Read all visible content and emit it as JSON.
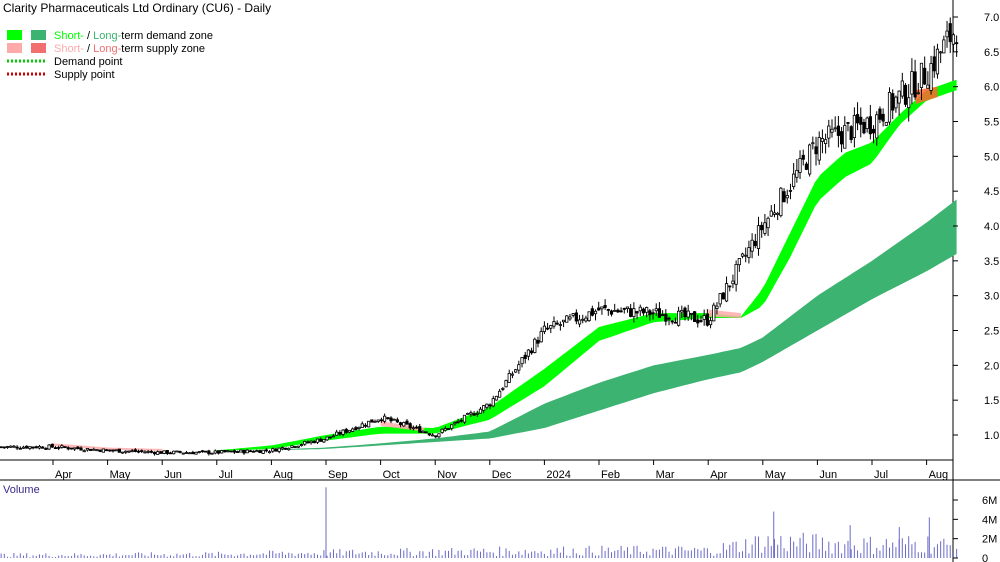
{
  "title": "Clarity Pharmaceuticals Ltd Ordinary (CU6) - Daily",
  "legend": {
    "demand_zone": {
      "short": "Short-",
      "sep": " / ",
      "long": "Long-",
      "rest": "term demand zone",
      "short_color": "#00ff00",
      "long_color": "#3cb371"
    },
    "supply_zone": {
      "short": "Short-",
      "sep": " / ",
      "long": "Long-",
      "rest": "term supply zone",
      "short_color": "#ffaaaa",
      "long_color": "#f07070"
    },
    "demand_point": "Demand point",
    "supply_point": "Supply point",
    "demand_point_color": "#00cc00",
    "supply_point_color": "#cc0000"
  },
  "volume_label": "Volume",
  "colors": {
    "short_demand": "#00ff00",
    "long_demand": "#3cb371",
    "supply": "#ff6633",
    "candle": "#000000",
    "volume": "#6a6ac8",
    "grid": "#cccccc"
  },
  "chart_data": {
    "type": "candlestick",
    "x_ticks": [
      "Apr",
      "May",
      "Jun",
      "Jul",
      "Aug",
      "Sep",
      "Oct",
      "Nov",
      "Dec",
      "2024",
      "Feb",
      "Mar",
      "Apr",
      "May",
      "Jun",
      "Jul",
      "Aug"
    ],
    "y_ticks": [
      "7.0",
      "6.5",
      "6.0",
      "5.5",
      "5.0",
      "4.5",
      "4.0",
      "3.5",
      "3.0",
      "2.5",
      "2.0",
      "1.5",
      "1.0"
    ],
    "ylim": [
      0.4,
      7.2
    ],
    "volume_ticks": [
      "6M",
      "4M",
      "2M",
      "0"
    ],
    "volume_ylim": [
      0,
      7.5
    ],
    "price_anchors": {
      "month_index": [
        0,
        1,
        2,
        3,
        4,
        5,
        6,
        7,
        8,
        9,
        10,
        11,
        12,
        13,
        14,
        15,
        16,
        16.55
      ],
      "close": [
        0.83,
        0.78,
        0.75,
        0.75,
        0.78,
        0.95,
        1.25,
        1.0,
        1.45,
        2.5,
        2.8,
        2.75,
        2.65,
        4.0,
        5.2,
        5.5,
        6.2,
        6.85
      ]
    },
    "short_demand_zone": {
      "month_index": [
        3.0,
        4.0,
        5.0,
        6.0,
        7.0,
        8.0,
        9.0,
        10.0,
        11.0,
        12.0,
        12.6,
        13.0,
        13.5,
        14.0,
        14.5,
        15.0,
        15.5,
        16.0,
        16.55
      ],
      "upper": [
        0.78,
        0.85,
        1.0,
        1.12,
        1.1,
        1.4,
        1.95,
        2.55,
        2.75,
        2.75,
        2.7,
        3.1,
        3.9,
        4.7,
        5.05,
        5.2,
        5.6,
        5.95,
        6.1
      ],
      "lower": [
        0.77,
        0.8,
        0.92,
        1.02,
        1.02,
        1.22,
        1.7,
        2.35,
        2.62,
        2.68,
        2.68,
        2.85,
        3.55,
        4.35,
        4.7,
        4.9,
        5.45,
        5.8,
        5.95
      ]
    },
    "long_demand_zone": {
      "month_index": [
        4.0,
        5.0,
        6.0,
        7.0,
        8.0,
        9.0,
        10.0,
        11.0,
        12.0,
        12.6,
        13.0,
        14.0,
        15.0,
        16.0,
        16.55
      ],
      "upper": [
        0.79,
        0.82,
        0.88,
        0.95,
        1.05,
        1.45,
        1.75,
        2.0,
        2.15,
        2.25,
        2.4,
        3.0,
        3.5,
        4.05,
        4.38
      ],
      "lower": [
        0.78,
        0.8,
        0.85,
        0.9,
        0.95,
        1.1,
        1.35,
        1.6,
        1.8,
        1.9,
        2.05,
        2.5,
        2.95,
        3.35,
        3.6
      ]
    },
    "supply_zone": {
      "month_index": [
        0.0,
        1.0,
        2.0,
        6.0,
        6.8,
        12.0,
        12.6,
        15.8,
        16.2
      ],
      "upper": [
        0.88,
        0.82,
        0.8,
        1.2,
        1.1,
        2.8,
        2.75,
        5.95,
        6.0
      ],
      "lower": [
        0.84,
        0.79,
        0.77,
        1.13,
        1.05,
        2.7,
        2.68,
        5.75,
        5.85
      ]
    },
    "volume_anchors": {
      "month_index": [
        0,
        3,
        5,
        8,
        10,
        12,
        13,
        14,
        15,
        16,
        16.55
      ],
      "level": [
        0.4,
        0.5,
        0.7,
        0.9,
        1.0,
        1.0,
        2.2,
        2.0,
        1.8,
        2.0,
        1.5
      ]
    },
    "volume_spikes": [
      {
        "month_index": 5.0,
        "level": 7.3
      },
      {
        "month_index": 13.2,
        "level": 4.8
      },
      {
        "month_index": 16.05,
        "level": 4.2
      },
      {
        "month_index": 14.6,
        "level": 3.4
      },
      {
        "month_index": 15.5,
        "level": 3.2
      }
    ]
  }
}
